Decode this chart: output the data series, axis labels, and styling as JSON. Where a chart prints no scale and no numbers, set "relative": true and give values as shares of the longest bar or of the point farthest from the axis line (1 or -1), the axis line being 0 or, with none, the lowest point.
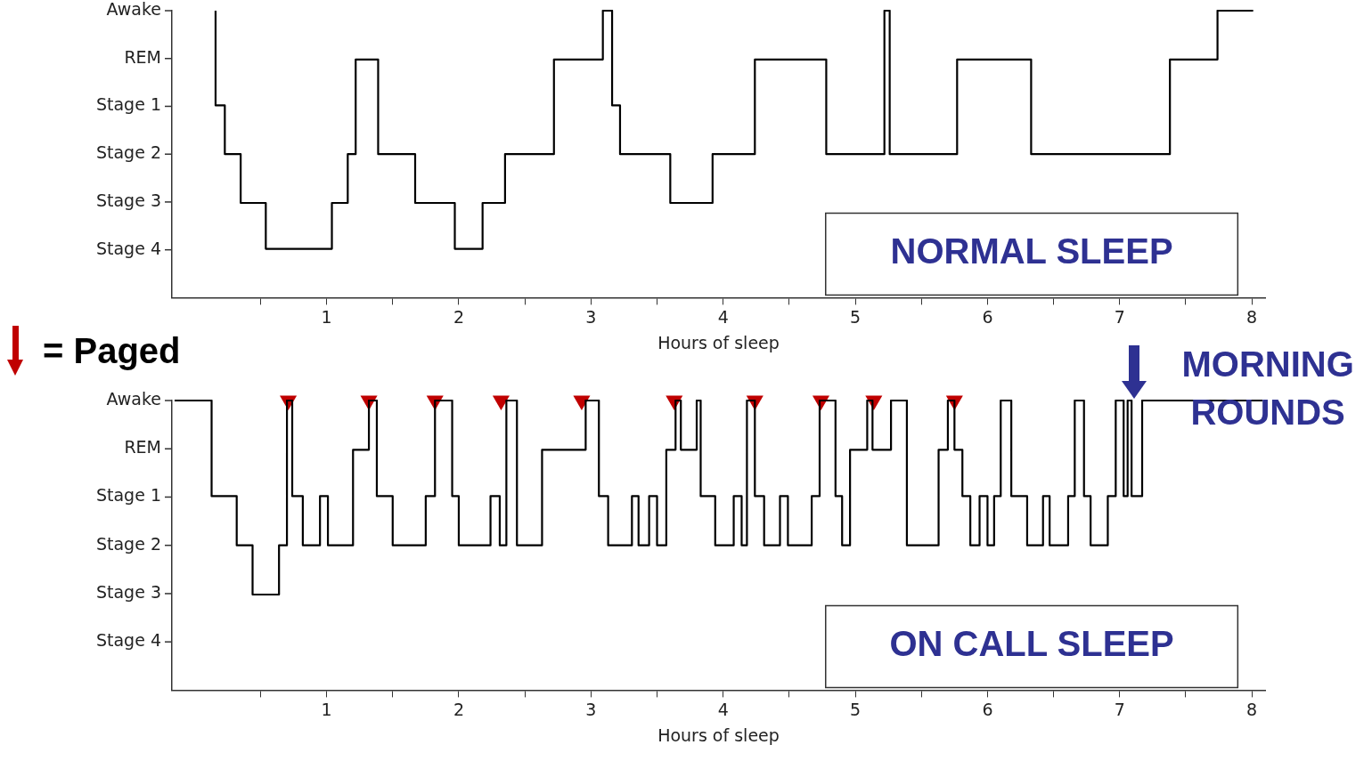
{
  "chart_data": [
    {
      "type": "step",
      "title": "NORMAL SLEEP",
      "xlabel": "Hours of sleep",
      "relative": true,
      "xlim": [
        -0.17,
        8.1
      ],
      "xticks": [
        {
          "value": 0.5,
          "label": null
        },
        1,
        {
          "value": 1.5,
          "label": null
        },
        2,
        {
          "value": 2.5,
          "label": null
        },
        3,
        {
          "value": 3.5,
          "label": null
        },
        4,
        {
          "value": 4.5,
          "label": null
        },
        5,
        {
          "value": 5.5,
          "label": null
        },
        6,
        {
          "value": 6.5,
          "label": null
        },
        7,
        {
          "value": 7.5,
          "label": null
        },
        8
      ],
      "annotations": [
        "Awake",
        "REM",
        "Stage 1",
        "Stage 2",
        "Stage 3",
        "Stage 4"
      ],
      "grid": false,
      "legend": false,
      "series": [
        {
          "color": "#000000",
          "x": [
            0.16,
            0.16,
            0.23,
            0.35,
            0.54,
            1.04,
            1.16,
            1.22,
            1.39,
            1.67,
            1.97,
            2.18,
            2.35,
            2.72,
            3.09,
            3.16,
            3.22,
            3.6,
            3.92,
            4.24,
            4.78,
            5.22,
            5.26,
            5.77,
            6.33,
            7.38,
            7.74,
            8.01
          ],
          "values": [
            1,
            0.67,
            0.5,
            0.33,
            0.17,
            0.33,
            0.5,
            0.83,
            0.5,
            0.33,
            0.17,
            0.33,
            0.5,
            0.83,
            1,
            0.67,
            0.5,
            0.33,
            0.5,
            0.83,
            0.5,
            1,
            0.5,
            0.83,
            0.5,
            0.83,
            1,
            1
          ]
        }
      ]
    },
    {
      "type": "step",
      "title": "ON CALL SLEEP",
      "xlabel": "Hours of sleep",
      "relative": true,
      "xlim": [
        -0.17,
        8.1
      ],
      "xticks": [
        {
          "value": 0.5,
          "label": null
        },
        1,
        {
          "value": 1.5,
          "label": null
        },
        2,
        {
          "value": 2.5,
          "label": null
        },
        3,
        {
          "value": 3.5,
          "label": null
        },
        4,
        {
          "value": 4.5,
          "label": null
        },
        5,
        {
          "value": 5.5,
          "label": null
        },
        6,
        {
          "value": 6.5,
          "label": null
        },
        7,
        {
          "value": 7.5,
          "label": null
        },
        8
      ],
      "grid": false,
      "legend": "top left",
      "annotations": [
        {
          "text": "MORNING ROUNDS",
          "x": 7.11,
          "y": 1
        },
        "Awake",
        "REM",
        "Stage 1",
        "Stage 2",
        "Stage 3",
        "Stage 4"
      ],
      "series": [
        {
          "color": "#000000",
          "x": [
            -0.15,
            0.13,
            0.32,
            0.44,
            0.64,
            0.7,
            0.74,
            0.82,
            0.95,
            1.01,
            1.2,
            1.32,
            1.38,
            1.5,
            1.75,
            1.82,
            1.95,
            2.0,
            2.24,
            2.31,
            2.36,
            2.44,
            2.63,
            2.96,
            3.06,
            3.13,
            3.31,
            3.36,
            3.44,
            3.5,
            3.57,
            3.64,
            3.68,
            3.8,
            3.83,
            3.94,
            4.08,
            4.14,
            4.18,
            4.24,
            4.31,
            4.43,
            4.49,
            4.67,
            4.73,
            4.85,
            4.9,
            4.96,
            5.09,
            5.13,
            5.27,
            5.39,
            5.63,
            5.7,
            5.75,
            5.81,
            5.87,
            5.94,
            6.0,
            6.05,
            6.1,
            6.18,
            6.3,
            6.42,
            6.47,
            6.61,
            6.66,
            6.73,
            6.78,
            6.91,
            6.97,
            7.03,
            7.06,
            7.09,
            7.17,
            8.08
          ],
          "values": [
            1,
            0.67,
            0.5,
            0.33,
            0.5,
            1,
            0.67,
            0.5,
            0.67,
            0.5,
            0.83,
            1,
            0.67,
            0.5,
            0.67,
            1,
            0.67,
            0.5,
            0.67,
            0.5,
            1,
            0.5,
            0.83,
            1,
            0.67,
            0.5,
            0.67,
            0.5,
            0.67,
            0.5,
            0.83,
            1,
            0.83,
            1,
            0.67,
            0.5,
            0.67,
            0.5,
            1,
            0.67,
            0.5,
            0.67,
            0.5,
            0.67,
            1,
            0.67,
            0.5,
            0.83,
            1,
            0.83,
            1,
            0.5,
            0.83,
            1,
            0.83,
            0.67,
            0.5,
            0.67,
            0.5,
            0.67,
            1,
            0.67,
            0.5,
            0.67,
            0.5,
            0.67,
            1,
            0.67,
            0.5,
            0.67,
            1,
            0.67,
            1,
            0.67,
            1,
            1
          ]
        },
        {
          "name": "= Paged",
          "type": "scatter",
          "marker": "triangle",
          "color": "#c00000",
          "x": [
            0.71,
            1.32,
            1.82,
            2.32,
            2.93,
            3.63,
            4.24,
            4.74,
            5.14,
            5.75
          ],
          "values": [
            1,
            1,
            1,
            1,
            1,
            1,
            1,
            1,
            1,
            1
          ]
        }
      ]
    }
  ]
}
